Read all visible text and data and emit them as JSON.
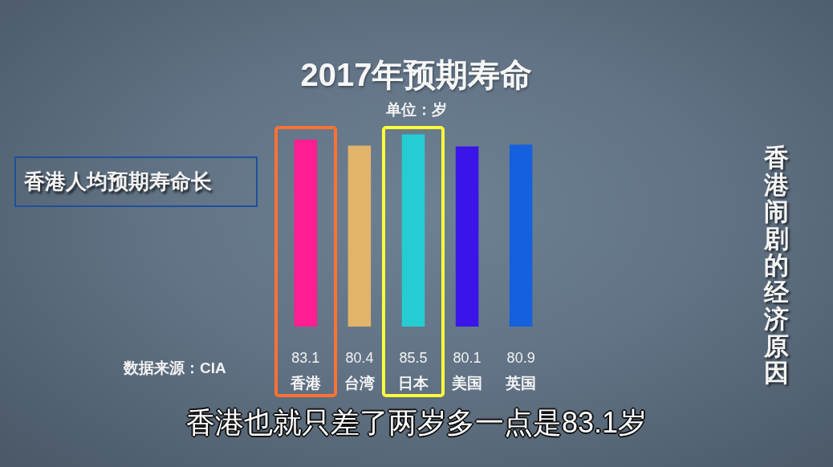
{
  "chart_data": {
    "type": "bar",
    "title": "2017年预期寿命",
    "subtitle": "单位：岁",
    "categories": [
      "香港",
      "台湾",
      "日本",
      "美国",
      "英国"
    ],
    "values": [
      83.1,
      80.4,
      85.5,
      80.1,
      80.9
    ],
    "colors": [
      "#fe1e92",
      "#e2b46a",
      "#25cdd3",
      "#3a14e8",
      "#1560dc"
    ],
    "data_labels": true,
    "tick_labels": "x",
    "annotations": [
      "香港人均预期寿命长",
      "数据来源：CIA",
      "香港闹剧的经济原因",
      "香港也就只差了两岁多一点是83.1岁"
    ]
  }
}
